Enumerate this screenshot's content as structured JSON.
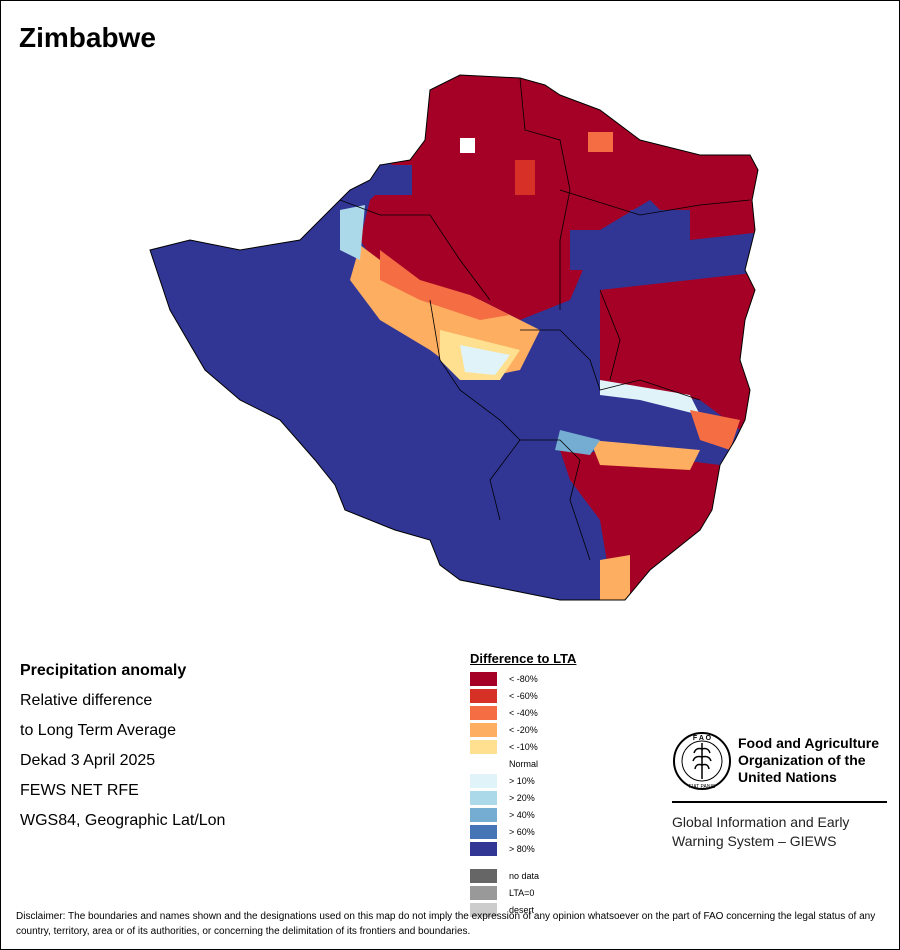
{
  "title": "Zimbabwe",
  "info": {
    "heading": "Precipitation anomaly",
    "line1": "Relative difference",
    "line2": "to Long Term Average",
    "line3": "Dekad 3 April 2025",
    "line4": "FEWS NET RFE",
    "line5": "WGS84, Geographic Lat/Lon"
  },
  "legend": {
    "title": "Difference to LTA",
    "items": [
      {
        "label": "< -80%",
        "color": "#a50026"
      },
      {
        "label": "< -60%",
        "color": "#d73027"
      },
      {
        "label": "< -40%",
        "color": "#f46d43"
      },
      {
        "label": "< -20%",
        "color": "#fdae61"
      },
      {
        "label": "< -10%",
        "color": "#fee090"
      },
      {
        "label": "Normal",
        "color": "#ffffff"
      },
      {
        "label": "> 10%",
        "color": "#e0f3f8"
      },
      {
        "label": "> 20%",
        "color": "#abd9e9"
      },
      {
        "label": "> 40%",
        "color": "#74add1"
      },
      {
        "label": "> 60%",
        "color": "#4575b4"
      },
      {
        "label": "> 80%",
        "color": "#313695"
      },
      {
        "label": "no data",
        "color": "#666666"
      },
      {
        "label": "LTA=0",
        "color": "#999999"
      },
      {
        "label": "desert",
        "color": "#cccccc"
      }
    ]
  },
  "logo": {
    "org_line1": "Food and Agriculture",
    "org_line2": "Organization of the",
    "org_line3": "United Nations",
    "emblem_letters": "FAO FIAT PANIS",
    "system_line1": "Global Information and Early",
    "system_line2": "Warning System – GIEWS"
  },
  "disclaimer": "Disclaimer: The boundaries and names shown and the designations used on this map do not imply the expression of any opinion whatsoever on the part of FAO concerning the legal status of any country, territory, area or of its authorities, or concerning the delimitation of its frontiers and boundaries."
}
